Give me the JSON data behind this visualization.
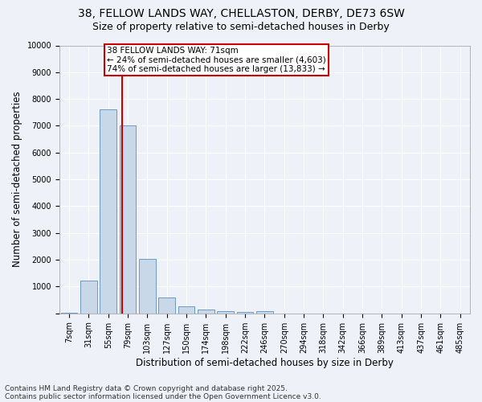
{
  "title_line1": "38, FELLOW LANDS WAY, CHELLASTON, DERBY, DE73 6SW",
  "title_line2": "Size of property relative to semi-detached houses in Derby",
  "xlabel": "Distribution of semi-detached houses by size in Derby",
  "ylabel": "Number of semi-detached properties",
  "categories": [
    "7sqm",
    "31sqm",
    "55sqm",
    "79sqm",
    "103sqm",
    "127sqm",
    "150sqm",
    "174sqm",
    "198sqm",
    "222sqm",
    "246sqm",
    "270sqm",
    "294sqm",
    "318sqm",
    "342sqm",
    "366sqm",
    "389sqm",
    "413sqm",
    "437sqm",
    "461sqm",
    "485sqm"
  ],
  "values": [
    30,
    1230,
    7600,
    7020,
    2020,
    600,
    270,
    130,
    80,
    50,
    70,
    0,
    0,
    0,
    0,
    0,
    0,
    0,
    0,
    0,
    0
  ],
  "bar_color": "#c8d8e8",
  "bar_edge_color": "#5a8fc0",
  "vline_color": "#cc0000",
  "vline_x": 2.72,
  "annotation_title": "38 FELLOW LANDS WAY: 71sqm",
  "annotation_line1": "← 24% of semi-detached houses are smaller (4,603)",
  "annotation_line2": "74% of semi-detached houses are larger (13,833) →",
  "annotation_box_color": "#cc0000",
  "ylim": [
    0,
    10000
  ],
  "yticks": [
    0,
    1000,
    2000,
    3000,
    4000,
    5000,
    6000,
    7000,
    8000,
    9000,
    10000
  ],
  "footnote_line1": "Contains HM Land Registry data © Crown copyright and database right 2025.",
  "footnote_line2": "Contains public sector information licensed under the Open Government Licence v3.0.",
  "bg_color": "#eef2f8",
  "grid_color": "#ffffff",
  "title_fontsize": 10,
  "subtitle_fontsize": 9,
  "axis_label_fontsize": 8.5,
  "tick_fontsize": 7,
  "footnote_fontsize": 6.5,
  "annotation_fontsize": 7.5
}
